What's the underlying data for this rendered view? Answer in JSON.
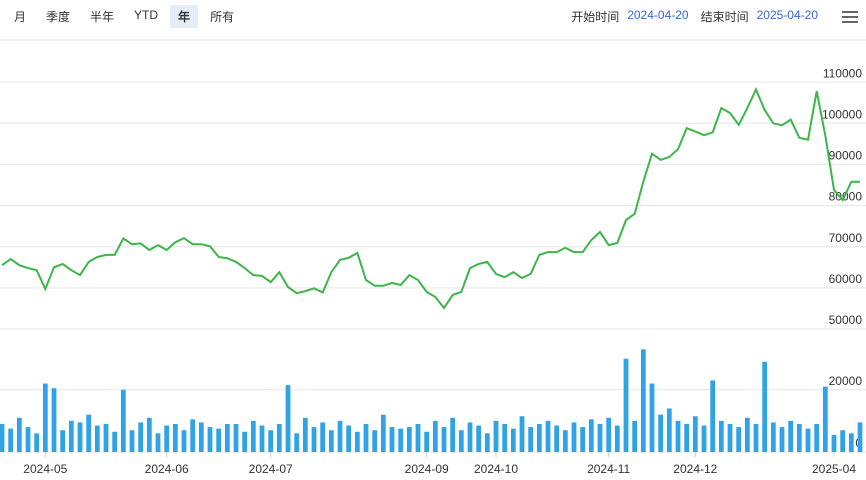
{
  "toolbar": {
    "periods": [
      "月",
      "季度",
      "半年",
      "YTD",
      "年",
      "所有"
    ],
    "selected": 4,
    "start_label": "开始时间",
    "start": "2024-04-20",
    "end_label": "结束时间",
    "end": "2025-04-20"
  },
  "chart_data": {
    "type": "line",
    "xlim": [
      0,
      99
    ],
    "xticks": [
      {
        "value": 5,
        "label": "2024-05"
      },
      {
        "value": 19,
        "label": "2024-06"
      },
      {
        "value": 31,
        "label": "2024-07"
      },
      {
        "value": 49,
        "label": "2024-09"
      },
      {
        "value": 57,
        "label": "2024-10"
      },
      {
        "value": 70,
        "label": "2024-11"
      },
      {
        "value": 80,
        "label": "2024-12"
      },
      {
        "value": 96,
        "label": "2025-04"
      }
    ],
    "ylim": [
      50000,
      120000
    ],
    "yticks": [
      50000,
      60000,
      70000,
      80000,
      90000,
      100000,
      110000
    ],
    "y2lim": [
      0,
      36000
    ],
    "y2ticks": [
      0,
      20000
    ],
    "grid": true,
    "series": [
      {
        "type": "line",
        "color": "#3cb54a",
        "values": [
          65500,
          67000,
          65500,
          64800,
          64300,
          59700,
          65000,
          65800,
          64300,
          63100,
          66300,
          67500,
          68000,
          68000,
          72000,
          70600,
          70800,
          69200,
          70400,
          69200,
          71100,
          72100,
          70600,
          70600,
          70100,
          67500,
          67200,
          66300,
          64800,
          63100,
          62900,
          61400,
          63800,
          60200,
          58700,
          59200,
          59900,
          58900,
          63800,
          66800,
          67300,
          68500,
          61900,
          60500,
          60500,
          61200,
          60700,
          63100,
          61900,
          59000,
          57800,
          55100,
          58300,
          59000,
          64800,
          65800,
          66300,
          63400,
          62600,
          63800,
          62400,
          63400,
          68000,
          68700,
          68700,
          69700,
          68700,
          68700,
          71600,
          73600,
          70400,
          70900,
          76500,
          78000,
          85800,
          92600,
          91100,
          91800,
          93700,
          98800,
          98000,
          97100,
          97800,
          103700,
          102500,
          99600,
          103700,
          108200,
          103200,
          100000,
          99500,
          100900,
          96500,
          96000,
          107800,
          97000,
          83800,
          81300,
          85800,
          85800
        ]
      },
      {
        "type": "bar",
        "axis": "y2",
        "color": "#2fa3e6",
        "values": [
          9000,
          7500,
          11000,
          8000,
          6000,
          22000,
          20500,
          7000,
          10000,
          9500,
          12000,
          8500,
          9000,
          6500,
          20000,
          7000,
          9500,
          11000,
          6000,
          8500,
          9000,
          7000,
          10500,
          9500,
          8000,
          7500,
          9000,
          9000,
          6500,
          10000,
          8500,
          7000,
          9000,
          21500,
          6000,
          11000,
          8000,
          9500,
          7000,
          10000,
          8500,
          6500,
          9000,
          7000,
          12000,
          8000,
          7500,
          8000,
          9000,
          6500,
          10000,
          8000,
          11000,
          7000,
          9500,
          8500,
          6000,
          10000,
          9000,
          7500,
          11500,
          8000,
          9000,
          10000,
          8500,
          7000,
          9500,
          8000,
          10500,
          9000,
          11000,
          8500,
          30000,
          10000,
          33000,
          22000,
          12000,
          14000,
          10000,
          9000,
          11500,
          8500,
          23000,
          10000,
          9000,
          8000,
          11000,
          9000,
          29000,
          9500,
          8000,
          10000,
          9000,
          7500,
          9000,
          21000,
          5500,
          7000,
          6000,
          9500
        ]
      }
    ]
  }
}
